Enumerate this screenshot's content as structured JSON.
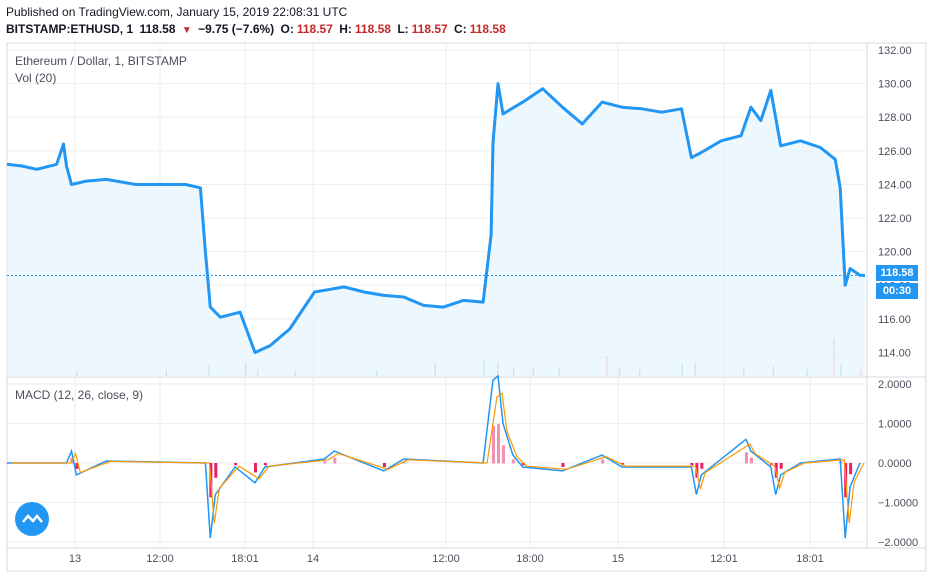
{
  "header": {
    "published": "Published on TradingView.com, January 15, 2019 22:08:31 UTC",
    "symbol": "BITSTAMP:ETHUSD, 1",
    "last": "118.58",
    "change": "−9.75 (−7.6%)",
    "o_label": "O:",
    "o_val": "118.57",
    "h_label": "H:",
    "h_val": "118.58",
    "l_label": "L:",
    "l_val": "118.57",
    "c_label": "C:",
    "c_val": "118.58"
  },
  "legend": {
    "title": "Ethereum / Dollar, 1, BITSTAMP",
    "vol": "Vol (20)",
    "macd": "MACD (12, 26, close, 9)"
  },
  "price_tag": {
    "value": "118.58",
    "timer": "00:30"
  },
  "colors": {
    "line": "#2196f3",
    "fill": "#e6f3fd",
    "hist_neg": "#e91e63",
    "signal": "#ff9800",
    "grid": "#eceef2"
  },
  "chart_data": [
    {
      "type": "line",
      "ylim": [
        112.6,
        132.3
      ],
      "y_ticks": [
        "132.00",
        "130.00",
        "128.00",
        "126.00",
        "124.00",
        "122.00",
        "120.00",
        "118.00",
        "116.00",
        "114.00"
      ],
      "x_ticks": [
        "13",
        "12:00",
        "18:01",
        "14",
        "12:00",
        "18:00",
        "15",
        "12:01",
        "18:01"
      ],
      "series": [
        {
          "x": [
            0,
            15,
            30,
            50,
            57,
            60,
            65,
            80,
            100,
            130,
            150,
            180,
            195,
            200,
            205,
            215,
            235,
            250,
            265,
            285,
            310,
            320,
            340,
            360,
            380,
            400,
            420,
            440,
            460,
            480,
            488,
            490,
            495,
            500,
            520,
            540,
            560,
            580,
            600,
            620,
            640,
            660,
            680,
            690,
            700,
            720,
            740,
            750,
            760,
            770,
            780,
            800,
            820,
            835,
            840,
            845,
            850,
            860,
            865
          ],
          "values": [
            125.2,
            125.1,
            124.9,
            125.2,
            126.4,
            125.1,
            124.0,
            124.2,
            124.3,
            124.0,
            124.0,
            124.0,
            123.8,
            120.0,
            116.7,
            116.1,
            116.4,
            114.0,
            114.4,
            115.4,
            117.6,
            117.7,
            117.9,
            117.6,
            117.4,
            117.3,
            116.8,
            116.7,
            117.1,
            117.0,
            121.0,
            126.5,
            130.0,
            128.2,
            128.9,
            129.7,
            128.6,
            127.6,
            128.9,
            128.6,
            128.5,
            128.3,
            128.5,
            125.6,
            125.9,
            126.6,
            126.9,
            128.6,
            127.8,
            129.6,
            126.3,
            126.6,
            126.2,
            125.5,
            123.8,
            118.0,
            119.0,
            118.6,
            118.58
          ]
        }
      ]
    },
    {
      "type": "bar",
      "title": "Vol (20)",
      "x": [
        70,
        160,
        203,
        240,
        252,
        290,
        372,
        431,
        480,
        494,
        510,
        530,
        556,
        604,
        617,
        637,
        680,
        693,
        742,
        772,
        806,
        833,
        840,
        860
      ],
      "values": [
        0.25,
        0.3,
        0.5,
        0.6,
        0.3,
        0.2,
        0.25,
        0.6,
        0.7,
        0.6,
        0.4,
        0.35,
        0.35,
        0.9,
        0.4,
        0.3,
        0.55,
        0.6,
        0.35,
        0.45,
        0.3,
        1.7,
        0.55,
        0.3
      ]
    },
    {
      "type": "line",
      "title": "MACD (12, 26, close, 9)",
      "ylim": [
        -2.1,
        2.1
      ],
      "y_ticks": [
        "2.0000",
        "1.0000",
        "0.0000",
        "−1.0000",
        "−2.0000"
      ],
      "series": [
        {
          "x": [
            0,
            60,
            65,
            70,
            100,
            200,
            205,
            210,
            230,
            250,
            260,
            320,
            330,
            380,
            400,
            480,
            490,
            495,
            500,
            510,
            520,
            560,
            600,
            620,
            690,
            695,
            700,
            745,
            750,
            770,
            775,
            780,
            800,
            840,
            845,
            850,
            860
          ],
          "values": [
            0,
            0,
            0.3,
            -0.3,
            0.05,
            0,
            -1.9,
            -0.8,
            -0.1,
            -0.5,
            -0.1,
            0.1,
            0.3,
            -0.2,
            0.1,
            0,
            2.1,
            2.2,
            1.0,
            0.2,
            -0.1,
            -0.2,
            0.2,
            -0.1,
            -0.1,
            -0.8,
            -0.3,
            0.6,
            0.3,
            -0.1,
            -0.8,
            -0.3,
            0,
            0.1,
            -1.9,
            -0.6,
            0
          ]
        }
      ]
    }
  ]
}
